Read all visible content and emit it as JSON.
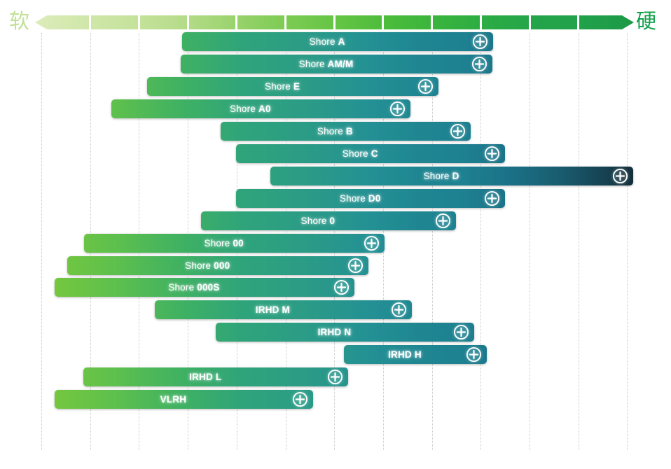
{
  "page": {
    "background": "#ffffff"
  },
  "scale_bar": {
    "soft_label": "软",
    "hard_label": "硬",
    "soft_label_color": "#c2e096",
    "hard_label_color": "#13a04c",
    "segment_count": 12,
    "direction": "left-soft-to-right-hard"
  },
  "icons": {
    "bar_action": "plus-circle-icon"
  },
  "colors": {
    "bar_gradient_soft_end": "#86cc3c",
    "bar_gradient_mid_teal": "#1e8191",
    "bar_gradient_hard_end": "#132e3a",
    "gridline": "#c9c9c9",
    "bar_text": "#ffffff"
  },
  "chart_data": {
    "type": "bar",
    "subtype": "horizontal-range-bars",
    "title": "",
    "x_axis": {
      "left_label": "软",
      "right_label": "硬",
      "min_pct": 0,
      "max_pct": 100,
      "gridline_count": 13,
      "grid_style": "dotted-vertical"
    },
    "bars": [
      {
        "name": "Shore A",
        "label_parts": [
          {
            "text": "Shore ",
            "bold": false
          },
          {
            "text": "A",
            "bold": true
          }
        ],
        "range_pct": [
          24.6,
          76.5
        ]
      },
      {
        "name": "Shore AM/M",
        "label_parts": [
          {
            "text": "Shore ",
            "bold": false
          },
          {
            "text": "AM/M",
            "bold": true
          }
        ],
        "range_pct": [
          24.3,
          76.4
        ]
      },
      {
        "name": "Shore E",
        "label_parts": [
          {
            "text": "Shore ",
            "bold": false
          },
          {
            "text": "E",
            "bold": true
          }
        ],
        "range_pct": [
          18.7,
          67.4
        ]
      },
      {
        "name": "Shore A0",
        "label_parts": [
          {
            "text": "Shore ",
            "bold": false
          },
          {
            "text": "A0",
            "bold": true
          }
        ],
        "range_pct": [
          12.7,
          62.7
        ]
      },
      {
        "name": "Shore B",
        "label_parts": [
          {
            "text": "Shore ",
            "bold": false
          },
          {
            "text": "B",
            "bold": true
          }
        ],
        "range_pct": [
          31.0,
          72.7
        ]
      },
      {
        "name": "Shore C",
        "label_parts": [
          {
            "text": "Shore ",
            "bold": false
          },
          {
            "text": "C",
            "bold": true
          }
        ],
        "range_pct": [
          33.6,
          78.5
        ]
      },
      {
        "name": "Shore D",
        "label_parts": [
          {
            "text": "Shore ",
            "bold": false
          },
          {
            "text": "D",
            "bold": true
          }
        ],
        "range_pct": [
          39.3,
          99.9
        ]
      },
      {
        "name": "Shore D0",
        "label_parts": [
          {
            "text": "Shore ",
            "bold": false
          },
          {
            "text": "D0",
            "bold": true
          }
        ],
        "range_pct": [
          33.6,
          78.5
        ]
      },
      {
        "name": "Shore 0",
        "label_parts": [
          {
            "text": "Shore ",
            "bold": false
          },
          {
            "text": "0",
            "bold": true
          }
        ],
        "range_pct": [
          27.7,
          70.3
        ]
      },
      {
        "name": "Shore 00",
        "label_parts": [
          {
            "text": "Shore ",
            "bold": false
          },
          {
            "text": "00",
            "bold": true
          }
        ],
        "range_pct": [
          8.2,
          58.4
        ]
      },
      {
        "name": "Shore 000",
        "label_parts": [
          {
            "text": "Shore ",
            "bold": false
          },
          {
            "text": "000",
            "bold": true
          }
        ],
        "range_pct": [
          5.4,
          55.7
        ]
      },
      {
        "name": "Shore 000S",
        "label_parts": [
          {
            "text": "Shore ",
            "bold": false
          },
          {
            "text": "000S",
            "bold": true
          }
        ],
        "range_pct": [
          3.3,
          53.3
        ]
      },
      {
        "name": "IRHD M",
        "label_parts": [
          {
            "text": "IRHD M",
            "bold": true
          }
        ],
        "range_pct": [
          20.0,
          62.9
        ]
      },
      {
        "name": "IRHD N",
        "label_parts": [
          {
            "text": "IRHD N",
            "bold": true
          }
        ],
        "range_pct": [
          30.2,
          73.3
        ]
      },
      {
        "name": "IRHD H",
        "label_parts": [
          {
            "text": "IRHD H",
            "bold": true
          }
        ],
        "range_pct": [
          51.6,
          75.4
        ]
      },
      {
        "name": "IRHD L",
        "label_parts": [
          {
            "text": "IRHD L",
            "bold": true
          }
        ],
        "range_pct": [
          8.1,
          52.3
        ]
      },
      {
        "name": "VLRH",
        "label_parts": [
          {
            "text": "VLRH",
            "bold": true
          }
        ],
        "range_pct": [
          3.3,
          46.4
        ]
      }
    ]
  }
}
